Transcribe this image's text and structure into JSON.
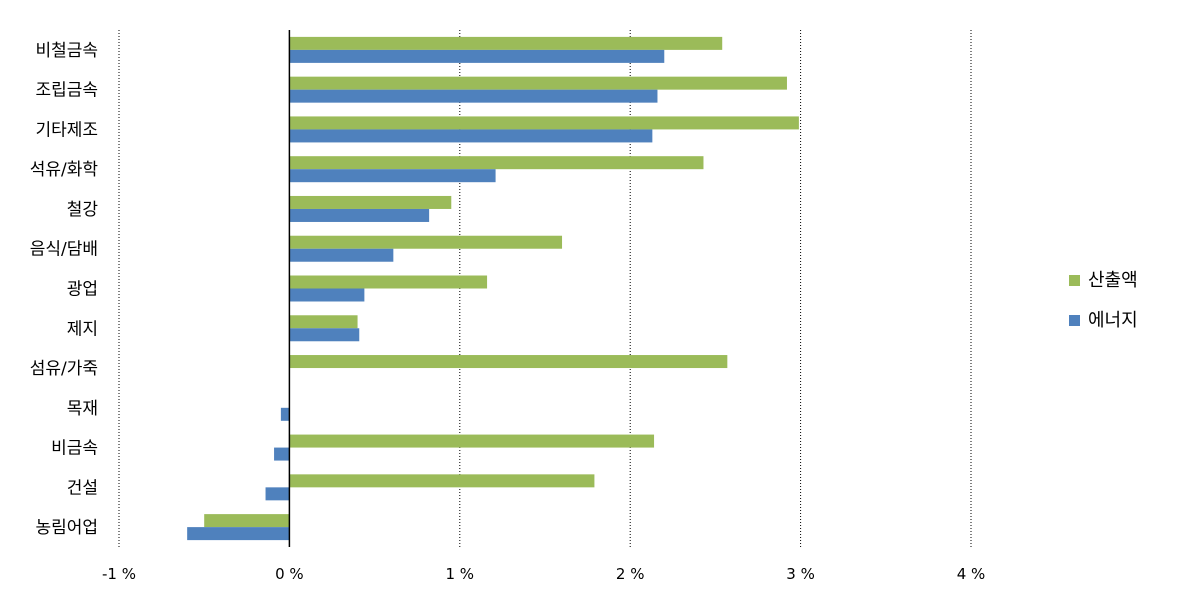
{
  "chart_data": {
    "type": "bar",
    "orientation": "horizontal",
    "categories": [
      "비철금속",
      "조립금속",
      "기타제조",
      "석유/화학",
      "철강",
      "음식/담배",
      "광업",
      "제지",
      "섬유/가죽",
      "목재",
      "비금속",
      "건설",
      "농림어업"
    ],
    "series": [
      {
        "name": "산출액",
        "color": "#9bbb59",
        "values": [
          2.54,
          2.92,
          2.99,
          2.43,
          0.95,
          1.6,
          1.16,
          0.4,
          2.57,
          0.0,
          2.14,
          1.79,
          -0.5
        ]
      },
      {
        "name": "에너지",
        "color": "#4f81bd",
        "values": [
          2.2,
          2.16,
          2.13,
          1.21,
          0.82,
          0.61,
          0.44,
          0.41,
          0.0,
          -0.05,
          -0.09,
          -0.14,
          -0.6
        ]
      }
    ],
    "xlim": [
      -1,
      4
    ],
    "xticks": [
      -1,
      0,
      1,
      2,
      3,
      4
    ],
    "xtick_labels": [
      "-1 %",
      "0 %",
      "1 %",
      "2 %",
      "3 %",
      "4 %"
    ],
    "grid": "vertical dotted",
    "legend_position": "right"
  }
}
